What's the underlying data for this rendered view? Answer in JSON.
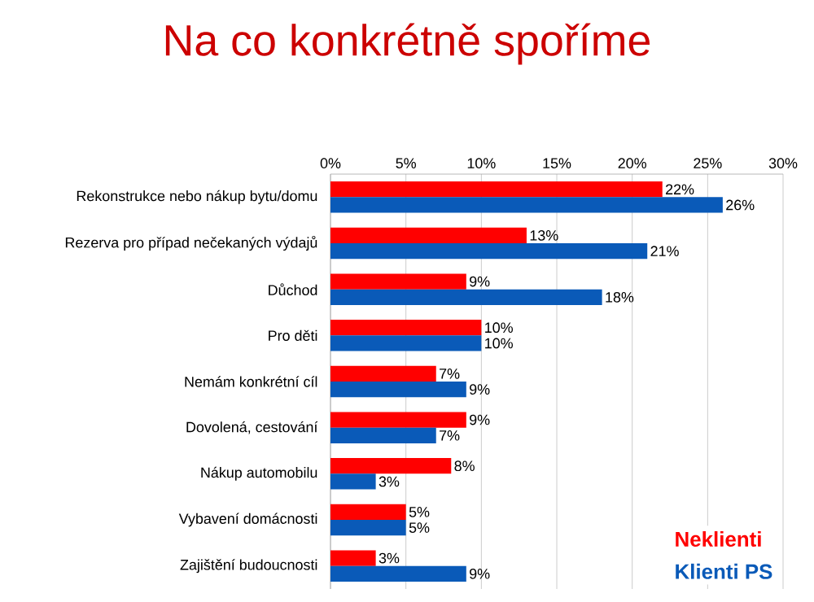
{
  "chart_data": {
    "type": "bar",
    "orientation": "horizontal",
    "title": "Na co konkrétně spoříme",
    "categories": [
      "Rekonstrukce nebo nákup bytu/domu",
      "Rezerva pro případ nečekaných výdajů",
      "Důchod",
      "Pro děti",
      "Nemám konkrétní cíl",
      "Dovolená, cestování",
      "Nákup automobilu",
      "Vybavení domácnosti",
      "Zajištění budoucnosti"
    ],
    "series": [
      {
        "name": "Neklienti",
        "color": "#ff0000",
        "values": [
          22,
          13,
          9,
          10,
          7,
          9,
          8,
          5,
          3
        ],
        "value_labels": [
          "22%",
          "13%",
          "9%",
          "10%",
          "7%",
          "9%",
          "8%",
          "5%",
          "3%"
        ]
      },
      {
        "name": "Klienti PS",
        "color": "#0a5ab8",
        "values": [
          26,
          21,
          18,
          10,
          9,
          7,
          3,
          5,
          9
        ],
        "value_labels": [
          "26%",
          "21%",
          "18%",
          "10%",
          "9%",
          "7%",
          "3%",
          "5%",
          "9%"
        ]
      }
    ],
    "xlim": [
      0,
      30
    ],
    "xticks": [
      {
        "value": 0,
        "label": "0%"
      },
      {
        "value": 5,
        "label": "5%"
      },
      {
        "value": 10,
        "label": "10%"
      },
      {
        "value": 15,
        "label": "15%"
      },
      {
        "value": 20,
        "label": "20%"
      },
      {
        "value": 25,
        "label": "25%"
      },
      {
        "value": 30,
        "label": "30%"
      }
    ],
    "grid": "x",
    "legend": "bottom right"
  }
}
